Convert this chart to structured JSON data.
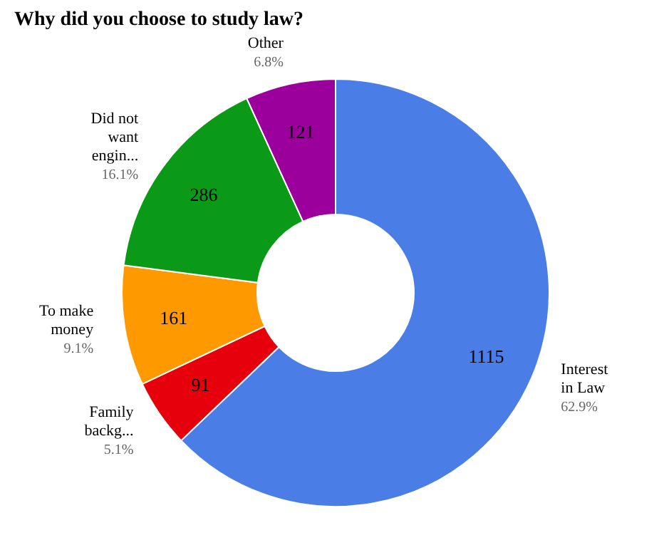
{
  "chart_data": {
    "type": "donut",
    "title": "Why did you choose to study law?",
    "categories": [
      "Interest in Law",
      "Family backg...",
      "To make money",
      "Did not want engin...",
      "Other"
    ],
    "values": [
      1115,
      91,
      161,
      286,
      121
    ],
    "colors": [
      "#4a7de6",
      "#e5000b",
      "#ff9900",
      "#0b9a17",
      "#9c009c"
    ],
    "data_labels": true,
    "annotations": [
      {
        "text": "62.9%",
        "x": "Interest in Law"
      },
      {
        "text": "5.1%",
        "x": "Family backg..."
      },
      {
        "text": "9.1%",
        "x": "To make money"
      },
      {
        "text": "16.1%",
        "x": "Did not want engin..."
      },
      {
        "text": "6.8%",
        "x": "Other"
      }
    ],
    "legend": false
  }
}
